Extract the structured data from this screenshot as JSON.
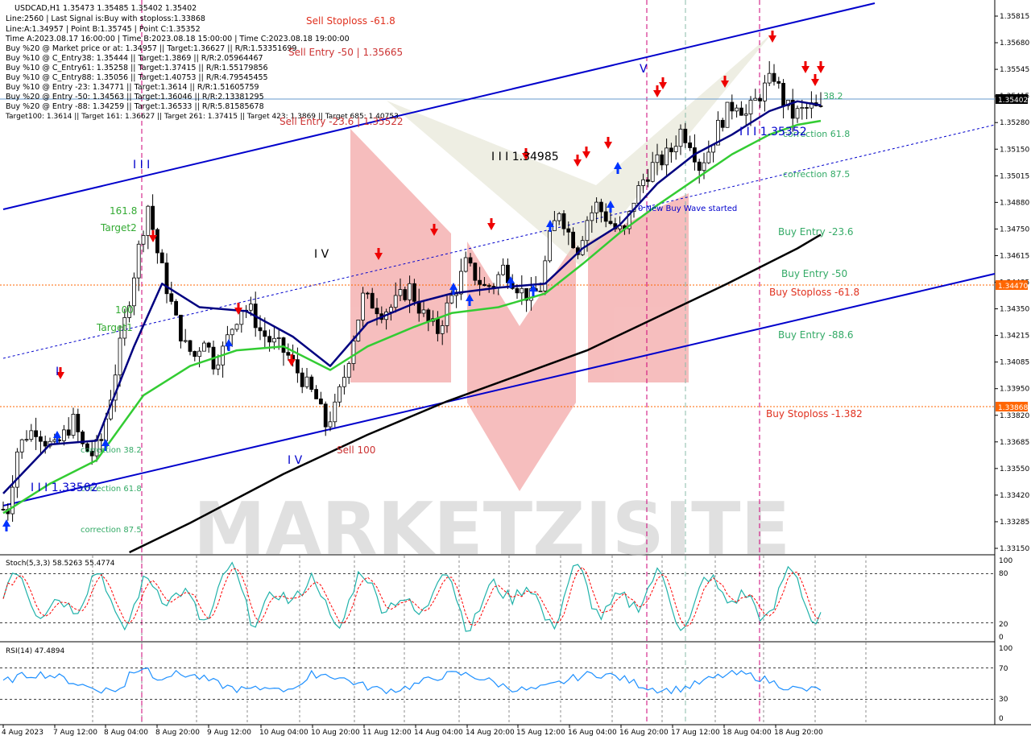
{
  "info_lines": [
    "USDCAD,H1  1.35473 1.35485 1.35402 1.35402",
    "Line:2560  | Last Signal is:Buy with stoploss:1.33868",
    "Line:A:1.34957 | Point B:1.35745 | Point C:1.35352",
    "Time A:2023.08.17 16:00:00 | Time B:2023.08.18 15:00:00 | Time C:2023.08.18 19:00:00",
    "Buy %20 @ Market price or at: 1.34957 || Target:1.36627 || R/R:1.53351699",
    "Buy %10 @ C_Entry38: 1.35444 || Target:1.3869 || R/R:2.05964467",
    "Buy %10 @ C_Entry61: 1.35258 || Target:1.37415 || R/R:1.55179856",
    "Buy %10 @ C_Entry88: 1.35056 || Target:1.40753 || R/R:4.79545455",
    "Buy %10 @ Entry -23: 1.34771 || Target:1.3614 || R/R:1.51605759",
    "Buy %20 @ Entry -50: 1.34563 || Target:1.36046 || R/R:2.13381295",
    "Buy %20 @ Entry -88: 1.34259 || Target:1.36533 || R/R:5.81585678",
    "Target100: 1.3614 || Target 161: 1.36627 || Target 261: 1.37415 || Target 423: 1.3869 || Target 685: 1.40753"
  ],
  "levels": {
    "sell_stoploss": "Sell Stoploss -61.8",
    "sell_entry_50": "Sell Entry -50 | 1.35665",
    "sell_entry_23": "Sell Entry -23.6 | 1.35522",
    "sell_100": "Sell 100",
    "buy_entry_23": "Buy Entry -23.6",
    "buy_entry_50": "Buy Entry -50",
    "buy_stoploss_61": "Buy Stoploss -61.8",
    "buy_entry_88": "Buy Entry -88.6",
    "buy_stoploss_1382": "Buy Stoploss -1.382",
    "correction_38_right": "38.2",
    "correction_61_right": "correction 61.8",
    "correction_87_right": "correction 87.5",
    "correction_38_left": "correction 38.2",
    "correction_61_left": "correction 61.8",
    "correction_87_left": "correction 87.5",
    "fib_1618": "161.8",
    "target2": "Target2",
    "fib_100": "100",
    "target1": "Target1",
    "new_wave": "0 New Buy Wave started"
  },
  "wave_labels": {
    "w1": "I I I",
    "w2": "I V",
    "w3": "I V",
    "w4": "I I I 1.34985",
    "w5": "V",
    "w6": "I I I 1.35352",
    "w7": "I I I 1.33502",
    "w8": "I"
  },
  "watermark": "MARKETZISITE",
  "price_tags": {
    "current": "1.35402",
    "orange1": "1.34470",
    "orange2": "1.33868"
  },
  "colors": {
    "blue_line": "#0000cc",
    "green_ma": "#33cc33",
    "navy_ma": "#000080",
    "black_ma": "#000000",
    "red_arrow": "#ee0000",
    "orange_level": "#ff6600",
    "magenta_vline": "#cc0077",
    "stoch_main": "#20b2aa",
    "stoch_signal": "#ff0000",
    "rsi": "#1e90ff"
  },
  "stoch_label": "Stoch(5,3,3) 58.5263 55.4774",
  "rsi_label": "RSI(14) 47.4894",
  "chart_data": {
    "type": "candlestick",
    "symbol": "USDCAD",
    "timeframe": "H1",
    "ylim": [
      1.3315,
      1.3595
    ],
    "price_ticks": [
      "1.35815",
      "1.35680",
      "1.35545",
      "1.35415",
      "1.35280",
      "1.35150",
      "1.35015",
      "1.34880",
      "1.34750",
      "1.34615",
      "1.34485",
      "1.34350",
      "1.34215",
      "1.34085",
      "1.33950",
      "1.33820",
      "1.33685",
      "1.33550",
      "1.33420",
      "1.33285",
      "1.33150"
    ],
    "time_labels": [
      "4 Aug 2023",
      "7 Aug 12:00",
      "8 Aug 04:00",
      "8 Aug 20:00",
      "9 Aug 12:00",
      "10 Aug 04:00",
      "10 Aug 20:00",
      "11 Aug 12:00",
      "14 Aug 04:00",
      "14 Aug 20:00",
      "15 Aug 12:00",
      "16 Aug 04:00",
      "16 Aug 20:00",
      "17 Aug 12:00",
      "18 Aug 04:00",
      "18 Aug 20:00"
    ],
    "stoch_ticks": [
      "100",
      "80",
      "20",
      "0"
    ],
    "rsi_ticks": [
      "100",
      "70",
      "30",
      "0"
    ],
    "close_path": [
      [
        1,
        1.3337
      ],
      [
        3,
        1.3367
      ],
      [
        5,
        1.3375
      ],
      [
        7,
        1.3378
      ],
      [
        9,
        1.3372
      ],
      [
        11,
        1.3368
      ],
      [
        13,
        1.3375
      ],
      [
        15,
        1.3382
      ],
      [
        17,
        1.3369
      ],
      [
        19,
        1.3365
      ],
      [
        21,
        1.3372
      ],
      [
        23,
        1.3395
      ],
      [
        25,
        1.342
      ],
      [
        27,
        1.3445
      ],
      [
        29,
        1.347
      ],
      [
        31,
        1.3492
      ],
      [
        33,
        1.3468
      ],
      [
        35,
        1.345
      ],
      [
        37,
        1.3433
      ],
      [
        39,
        1.342
      ],
      [
        41,
        1.3415
      ],
      [
        43,
        1.3425
      ],
      [
        45,
        1.3412
      ],
      [
        47,
        1.3418
      ],
      [
        49,
        1.343
      ],
      [
        51,
        1.344
      ],
      [
        53,
        1.3438
      ],
      [
        55,
        1.3428
      ],
      [
        57,
        1.3423
      ],
      [
        59,
        1.342
      ],
      [
        61,
        1.3415
      ],
      [
        63,
        1.3407
      ],
      [
        65,
        1.34
      ],
      [
        67,
        1.3393
      ],
      [
        69,
        1.338
      ],
      [
        71,
        1.3388
      ],
      [
        73,
        1.3405
      ],
      [
        75,
        1.3425
      ],
      [
        77,
        1.3445
      ],
      [
        79,
        1.3442
      ],
      [
        81,
        1.3438
      ],
      [
        83,
        1.344
      ],
      [
        85,
        1.3445
      ],
      [
        87,
        1.345
      ],
      [
        89,
        1.344
      ],
      [
        91,
        1.3432
      ],
      [
        93,
        1.3428
      ],
      [
        95,
        1.344
      ],
      [
        97,
        1.345
      ],
      [
        99,
        1.3462
      ],
      [
        101,
        1.3456
      ],
      [
        103,
        1.345
      ],
      [
        105,
        1.3452
      ],
      [
        107,
        1.346
      ],
      [
        109,
        1.3454
      ],
      [
        111,
        1.3448
      ],
      [
        113,
        1.3445
      ],
      [
        115,
        1.345
      ],
      [
        117,
        1.3475
      ],
      [
        119,
        1.349
      ],
      [
        121,
        1.3478
      ],
      [
        123,
        1.347
      ],
      [
        125,
        1.3485
      ],
      [
        127,
        1.3492
      ],
      [
        129,
        1.3486
      ],
      [
        131,
        1.348
      ],
      [
        133,
        1.3478
      ],
      [
        135,
        1.3495
      ],
      [
        137,
        1.3505
      ],
      [
        139,
        1.3512
      ],
      [
        141,
        1.3515
      ],
      [
        143,
        1.352
      ],
      [
        145,
        1.353
      ],
      [
        147,
        1.3525
      ],
      [
        149,
        1.3512
      ],
      [
        151,
        1.352
      ],
      [
        153,
        1.3532
      ],
      [
        155,
        1.354
      ],
      [
        157,
        1.3545
      ],
      [
        159,
        1.3538
      ],
      [
        161,
        1.3545
      ],
      [
        163,
        1.3552
      ],
      [
        165,
        1.3558
      ],
      [
        167,
        1.3545
      ],
      [
        169,
        1.3538
      ],
      [
        171,
        1.354
      ],
      [
        173,
        1.3542
      ],
      [
        175,
        1.354
      ]
    ],
    "series": [
      {
        "name": "MA fast (navy)",
        "values": [
          [
            0,
            1.3345
          ],
          [
            10,
            1.337
          ],
          [
            20,
            1.3372
          ],
          [
            28,
            1.342
          ],
          [
            34,
            1.3452
          ],
          [
            42,
            1.344
          ],
          [
            52,
            1.3438
          ],
          [
            62,
            1.3425
          ],
          [
            70,
            1.341
          ],
          [
            78,
            1.3432
          ],
          [
            88,
            1.3442
          ],
          [
            96,
            1.3447
          ],
          [
            106,
            1.345
          ],
          [
            116,
            1.3452
          ],
          [
            124,
            1.347
          ],
          [
            132,
            1.3482
          ],
          [
            140,
            1.3503
          ],
          [
            148,
            1.3518
          ],
          [
            156,
            1.3528
          ],
          [
            164,
            1.354
          ],
          [
            170,
            1.3545
          ],
          [
            175,
            1.3543
          ]
        ]
      },
      {
        "name": "MA mid (green)",
        "values": [
          [
            0,
            1.3335
          ],
          [
            10,
            1.335
          ],
          [
            20,
            1.3362
          ],
          [
            30,
            1.3395
          ],
          [
            40,
            1.341
          ],
          [
            50,
            1.3418
          ],
          [
            60,
            1.342
          ],
          [
            70,
            1.3408
          ],
          [
            78,
            1.342
          ],
          [
            88,
            1.343
          ],
          [
            96,
            1.3437
          ],
          [
            106,
            1.344
          ],
          [
            116,
            1.3447
          ],
          [
            124,
            1.3462
          ],
          [
            132,
            1.3478
          ],
          [
            140,
            1.3492
          ],
          [
            148,
            1.3505
          ],
          [
            156,
            1.3518
          ],
          [
            164,
            1.3528
          ],
          [
            170,
            1.3533
          ],
          [
            175,
            1.3535
          ]
        ]
      },
      {
        "name": "MA slow (black)",
        "values": [
          [
            27,
            1.3315
          ],
          [
            40,
            1.333
          ],
          [
            60,
            1.3355
          ],
          [
            78,
            1.3375
          ],
          [
            95,
            1.3392
          ],
          [
            110,
            1.3405
          ],
          [
            125,
            1.3418
          ],
          [
            140,
            1.3435
          ],
          [
            155,
            1.3452
          ],
          [
            170,
            1.347
          ],
          [
            175,
            1.3477
          ]
        ]
      }
    ]
  }
}
